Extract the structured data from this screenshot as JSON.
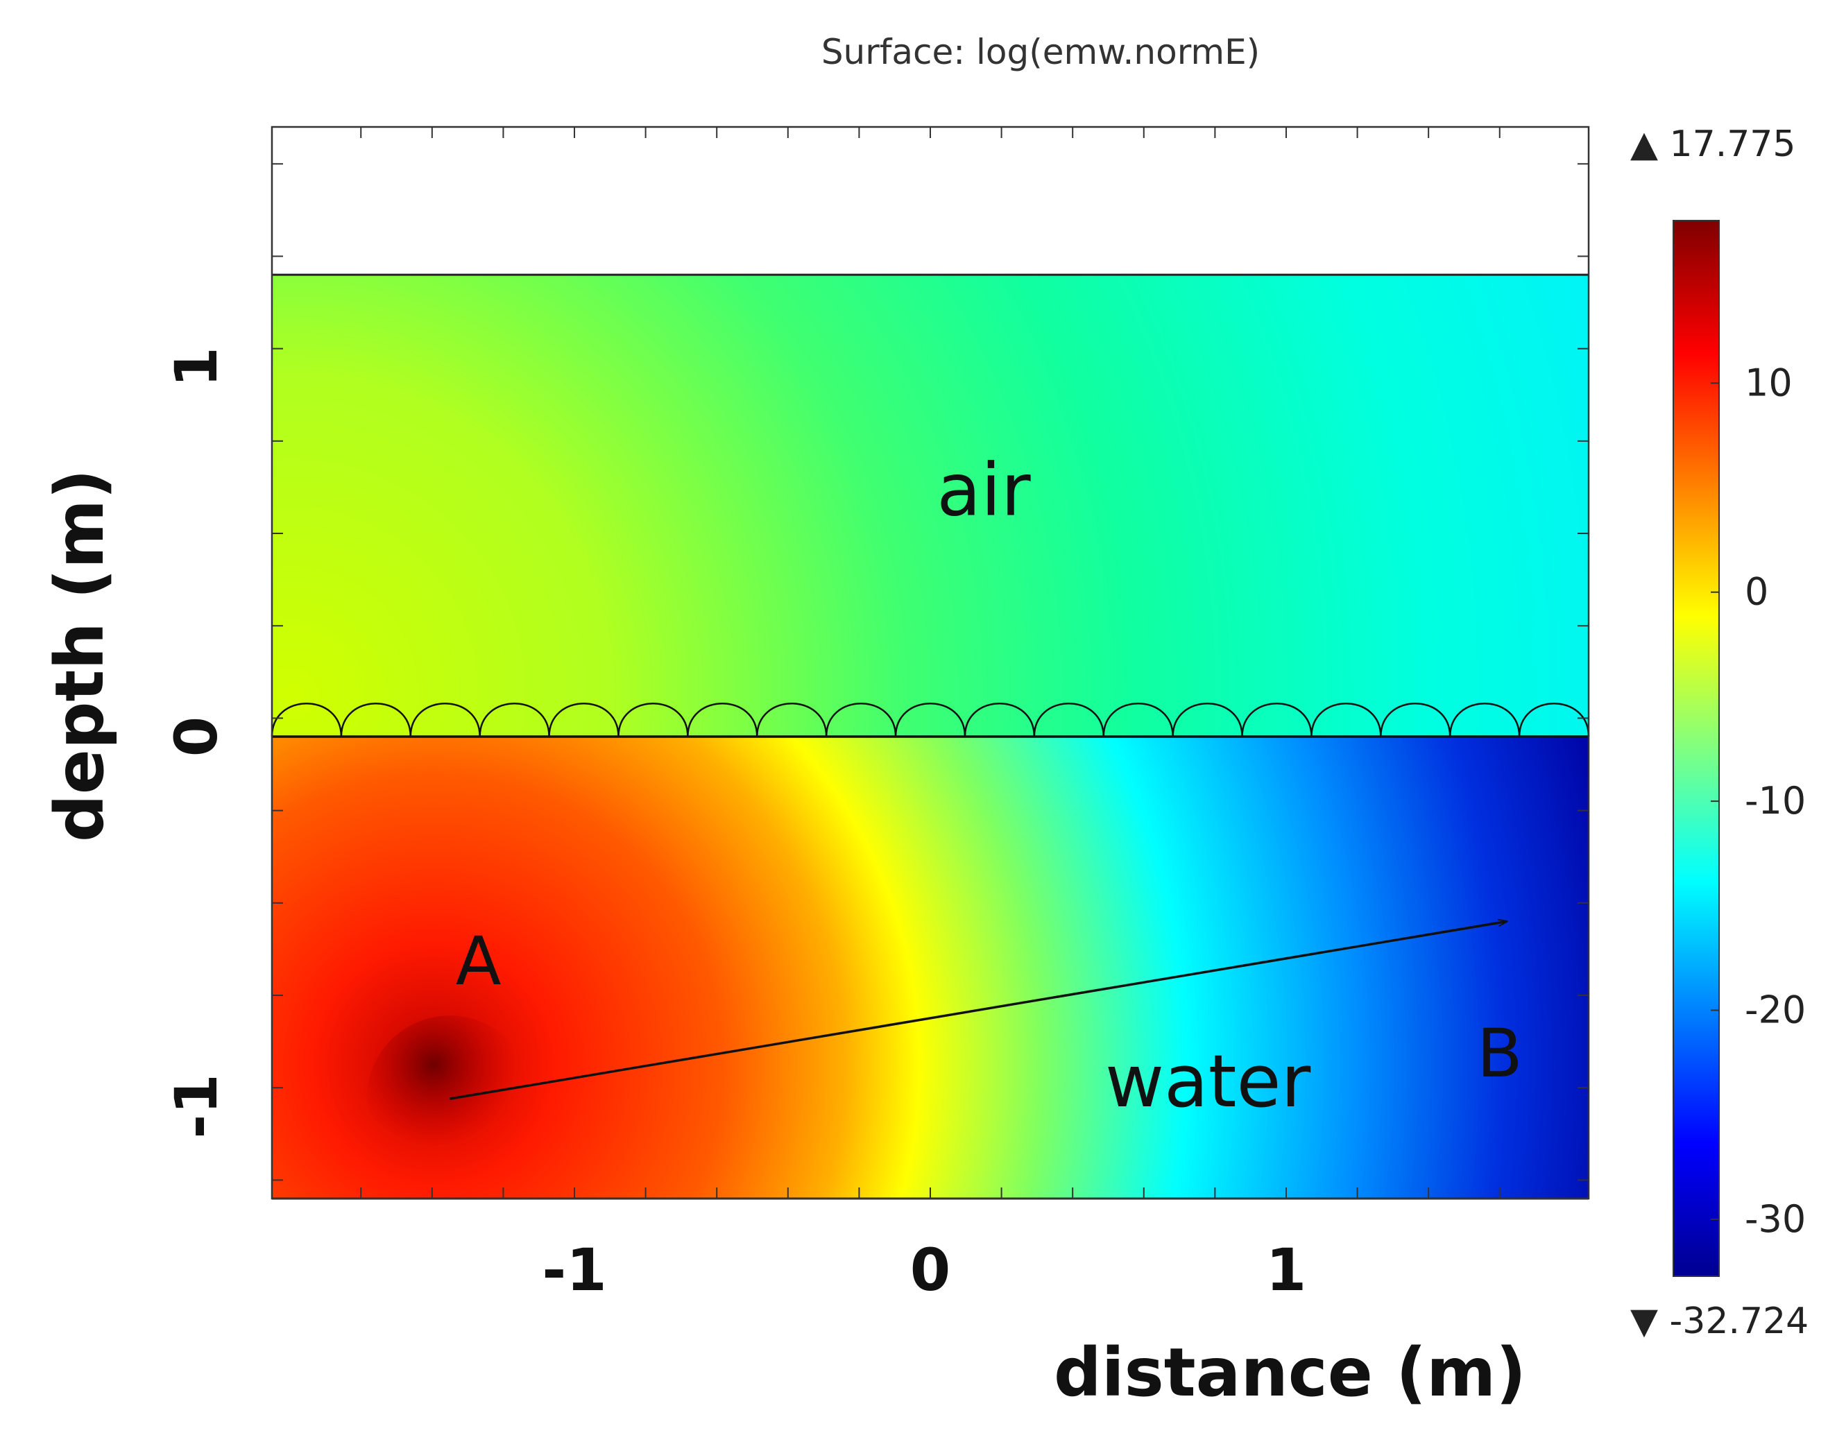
{
  "chart_data": {
    "type": "heatmap",
    "title": "Surface: log(emw.normE)",
    "xlabel": "distance (m)",
    "ylabel": "depth (m)",
    "xlim": [
      -1.85,
      1.85
    ],
    "ylim": [
      -1.25,
      1.65
    ],
    "x_ticks": [
      -1,
      0,
      1
    ],
    "y_ticks": [
      -1,
      0,
      1
    ],
    "domain": {
      "x": [
        -1.85,
        1.85
      ],
      "air_y": [
        0,
        1.25
      ],
      "water_y": [
        -1.25,
        0
      ]
    },
    "colorbar": {
      "min_label": "▼ -32.724",
      "max_label": "▲ 17.775",
      "min": -32.724,
      "max": 17.775,
      "ticks": [
        -30,
        -20,
        -10,
        0,
        10
      ],
      "tick_labels": [
        "-30",
        "-20",
        "-10",
        "0",
        "10"
      ],
      "colors": [
        "#00008f",
        "#0000ff",
        "#0080ff",
        "#00ffff",
        "#80ff80",
        "#ffff00",
        "#ff8000",
        "#ff0000",
        "#800000"
      ]
    },
    "annotations": {
      "air": {
        "text": "air",
        "x": 0.15,
        "y": 0.6
      },
      "water": {
        "text": "water",
        "x": 0.78,
        "y": -1.0
      },
      "point_a": {
        "text": "A",
        "x": -1.27,
        "y": -0.67
      },
      "point_b": {
        "text": "B",
        "x": 1.6,
        "y": -0.92
      },
      "arrow": {
        "from": [
          -1.35,
          -0.98
        ],
        "to": [
          1.62,
          -0.5
        ]
      }
    },
    "surface_waves": {
      "count": 19,
      "x_start": -1.85,
      "x_end": 1.85,
      "height": 0.09
    }
  }
}
